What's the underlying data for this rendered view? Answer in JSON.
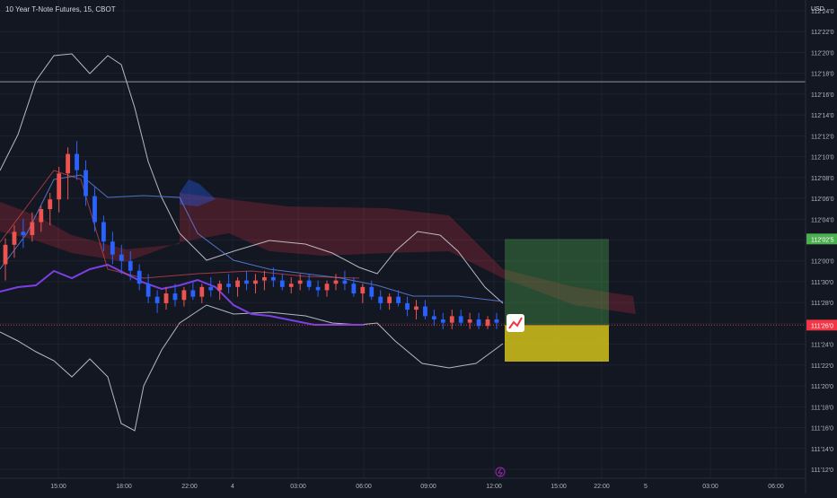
{
  "header": {
    "title": "10 Year T-Note Futures, 15, CBOT"
  },
  "currency_label": "USD",
  "colors": {
    "bg": "#131722",
    "up": "#ef5350",
    "down": "#2962ff",
    "grid": "#1e222d",
    "text": "#b2b5be"
  },
  "price_tags": [
    {
      "label": "112'02'5",
      "price": 112.078,
      "color": "#4caf50"
    },
    {
      "label": "111'26'0",
      "price": 111.8125,
      "color": "#f23645"
    }
  ],
  "icons": {
    "flash": "flash-icon",
    "chart_badge": "trend-chart-icon"
  },
  "chart_data": {
    "type": "candlestick",
    "title": "10 Year T-Note Futures, 15, CBOT",
    "y_ticks": [
      "112'24'0",
      "112'22'0",
      "112'20'0",
      "112'18'0",
      "112'16'0",
      "112'14'0",
      "112'12'0",
      "112'10'0",
      "112'08'0",
      "112'06'0",
      "112'04'0",
      "112'02'0",
      "112'00'0",
      "111'30'0",
      "111'28'0",
      "111'26'0",
      "111'24'0",
      "111'22'0",
      "111'20'0",
      "111'18'0",
      "111'16'0",
      "111'14'0",
      "111'12'0"
    ],
    "ylim": [
      111.3681,
      112.7813
    ],
    "x_ticks": [
      "15:00",
      "18:00",
      "22:00",
      "4",
      "03:00",
      "06:00",
      "09:00",
      "12:00",
      "15:00",
      "22:00",
      "5",
      "03:00",
      "06:00"
    ],
    "horizontal_line_price": 112.5625,
    "series": [
      {
        "name": "10 Year T-Note Futures",
        "candles": [
          [
            112.0,
            112.08,
            111.95,
            112.06
          ],
          [
            112.06,
            112.12,
            112.02,
            112.1
          ],
          [
            112.1,
            112.14,
            112.05,
            112.09
          ],
          [
            112.09,
            112.16,
            112.07,
            112.13
          ],
          [
            112.13,
            112.18,
            112.1,
            112.17
          ],
          [
            112.17,
            112.22,
            112.12,
            112.2
          ],
          [
            112.2,
            112.3,
            112.16,
            112.28
          ],
          [
            112.28,
            112.36,
            112.2,
            112.34
          ],
          [
            112.34,
            112.38,
            112.26,
            112.29
          ],
          [
            112.29,
            112.32,
            112.18,
            112.21
          ],
          [
            112.21,
            112.24,
            112.1,
            112.13
          ],
          [
            112.13,
            112.15,
            112.04,
            112.07
          ],
          [
            112.07,
            112.1,
            112.0,
            112.03
          ],
          [
            112.03,
            112.06,
            111.97,
            112.01
          ],
          [
            112.01,
            112.04,
            111.95,
            111.98
          ],
          [
            111.98,
            112.0,
            111.92,
            111.94
          ],
          [
            111.94,
            111.97,
            111.88,
            111.9
          ],
          [
            111.9,
            111.92,
            111.85,
            111.88
          ],
          [
            111.88,
            111.93,
            111.86,
            111.91
          ],
          [
            111.91,
            111.94,
            111.87,
            111.89
          ],
          [
            111.89,
            111.93,
            111.87,
            111.92
          ],
          [
            111.92,
            111.95,
            111.89,
            111.9
          ],
          [
            111.9,
            111.94,
            111.88,
            111.93
          ],
          [
            111.93,
            111.96,
            111.9,
            111.92
          ],
          [
            111.92,
            111.95,
            111.89,
            111.94
          ],
          [
            111.94,
            111.97,
            111.91,
            111.93
          ],
          [
            111.93,
            111.96,
            111.9,
            111.95
          ],
          [
            111.95,
            111.98,
            111.92,
            111.94
          ],
          [
            111.94,
            111.97,
            111.91,
            111.95
          ],
          [
            111.95,
            111.98,
            111.92,
            111.96
          ],
          [
            111.96,
            111.99,
            111.93,
            111.95
          ],
          [
            111.95,
            111.97,
            111.92,
            111.93
          ],
          [
            111.93,
            111.96,
            111.91,
            111.94
          ],
          [
            111.94,
            111.97,
            111.92,
            111.95
          ],
          [
            111.95,
            111.97,
            111.92,
            111.93
          ],
          [
            111.93,
            111.95,
            111.9,
            111.92
          ],
          [
            111.92,
            111.95,
            111.9,
            111.94
          ],
          [
            111.94,
            111.97,
            111.92,
            111.95
          ],
          [
            111.95,
            111.98,
            111.92,
            111.94
          ],
          [
            111.94,
            111.96,
            111.9,
            111.91
          ],
          [
            111.91,
            111.94,
            111.88,
            111.93
          ],
          [
            111.93,
            111.95,
            111.89,
            111.9
          ],
          [
            111.9,
            111.92,
            111.86,
            111.88
          ],
          [
            111.88,
            111.91,
            111.86,
            111.9
          ],
          [
            111.9,
            111.92,
            111.87,
            111.88
          ],
          [
            111.88,
            111.9,
            111.84,
            111.86
          ],
          [
            111.86,
            111.89,
            111.83,
            111.87
          ],
          [
            111.87,
            111.89,
            111.83,
            111.84
          ],
          [
            111.84,
            111.86,
            111.81,
            111.83
          ],
          [
            111.83,
            111.85,
            111.8,
            111.82
          ],
          [
            111.82,
            111.86,
            111.8,
            111.84
          ],
          [
            111.84,
            111.86,
            111.81,
            111.82
          ],
          [
            111.82,
            111.85,
            111.8,
            111.83
          ],
          [
            111.83,
            111.85,
            111.8,
            111.81
          ],
          [
            111.81,
            111.84,
            111.8,
            111.83
          ],
          [
            111.83,
            111.85,
            111.8,
            111.82
          ]
        ]
      }
    ],
    "annotations": [
      {
        "type": "position-profit",
        "from": 111.8125,
        "to": 112.078
      },
      {
        "type": "position-stop",
        "from": 111.8125,
        "to": 111.7
      }
    ]
  }
}
